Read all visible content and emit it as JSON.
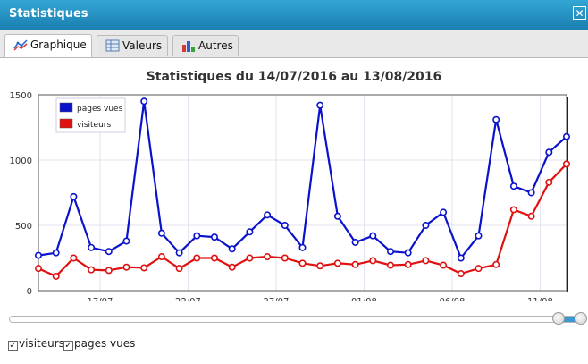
{
  "window": {
    "title": "Statistiques",
    "close_glyph": "✕"
  },
  "tabs": [
    {
      "label": "Graphique",
      "icon": "line-chart-icon",
      "active": true
    },
    {
      "label": "Valeurs",
      "icon": "table-icon",
      "active": false
    },
    {
      "label": "Autres",
      "icon": "bar-chart-icon",
      "active": false
    }
  ],
  "chart_data": {
    "type": "line",
    "title": "Statistiques du 14/07/2016 au 13/08/2016",
    "xlabel": "",
    "ylabel": "",
    "x_tick_labels": [
      "17/07",
      "22/07",
      "27/07",
      "01/08",
      "06/08",
      "11/08"
    ],
    "x_tick_positions": [
      3.5,
      8.5,
      13.5,
      18.5,
      23.5,
      28.5
    ],
    "y_ticks": [
      0,
      500,
      1000,
      1500
    ],
    "ylim": [
      0,
      1500
    ],
    "grid": true,
    "legend_position": "top-left",
    "colors": {
      "pages vues": "#0a12cc",
      "visiteurs": "#e01010"
    },
    "series": [
      {
        "name": "pages vues",
        "values": [
          270,
          290,
          720,
          330,
          300,
          380,
          1450,
          440,
          290,
          420,
          410,
          320,
          450,
          580,
          500,
          330,
          1420,
          570,
          370,
          420,
          300,
          290,
          500,
          600,
          250,
          420,
          1310,
          800,
          750,
          1060,
          1180
        ]
      },
      {
        "name": "visiteurs",
        "values": [
          170,
          110,
          250,
          160,
          155,
          180,
          175,
          260,
          170,
          250,
          250,
          180,
          250,
          260,
          250,
          210,
          190,
          210,
          200,
          230,
          195,
          200,
          230,
          195,
          130,
          170,
          200,
          620,
          570,
          830,
          970
        ]
      }
    ]
  },
  "slider": {
    "range_start_fraction": 0.96,
    "range_end_fraction": 1.0
  },
  "checkboxes": [
    {
      "label": "visiteurs",
      "checked": true
    },
    {
      "label": "pages vues",
      "checked": true
    }
  ]
}
